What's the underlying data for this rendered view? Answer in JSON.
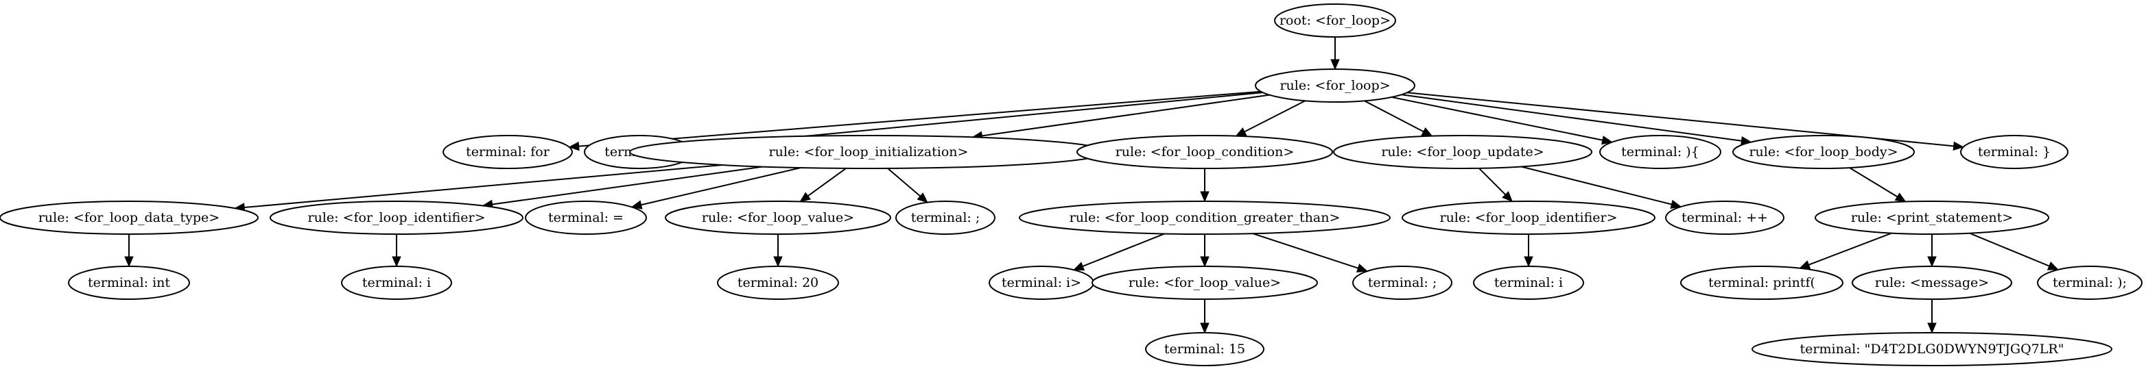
{
  "diagram": {
    "type": "parse-tree",
    "nodes": [
      {
        "id": "n0",
        "label": "root: <for_loop>"
      },
      {
        "id": "n1",
        "label": "rule: <for_loop>"
      },
      {
        "id": "n2",
        "label": "terminal: for"
      },
      {
        "id": "n3",
        "label": "terminal: ("
      },
      {
        "id": "n4",
        "label": "rule: <for_loop_initialization>"
      },
      {
        "id": "n5",
        "label": "rule: <for_loop_condition>"
      },
      {
        "id": "n6",
        "label": "rule: <for_loop_update>"
      },
      {
        "id": "n7",
        "label": "terminal: ){"
      },
      {
        "id": "n8",
        "label": "rule: <for_loop_body>"
      },
      {
        "id": "n9",
        "label": "terminal: }"
      },
      {
        "id": "n10",
        "label": "rule: <for_loop_data_type>"
      },
      {
        "id": "n11",
        "label": "rule: <for_loop_identifier>"
      },
      {
        "id": "n12",
        "label": "terminal: ="
      },
      {
        "id": "n13",
        "label": "rule: <for_loop_value>"
      },
      {
        "id": "n14",
        "label": "terminal: ;"
      },
      {
        "id": "n15",
        "label": "rule: <for_loop_condition_greater_than>"
      },
      {
        "id": "n16",
        "label": "rule: <for_loop_identifier>"
      },
      {
        "id": "n17",
        "label": "terminal: ++"
      },
      {
        "id": "n18",
        "label": "rule: <print_statement>"
      },
      {
        "id": "n19",
        "label": "terminal: int"
      },
      {
        "id": "n20",
        "label": "terminal: i"
      },
      {
        "id": "n21",
        "label": "terminal: 20"
      },
      {
        "id": "n22",
        "label": "terminal: i>"
      },
      {
        "id": "n23",
        "label": "rule: <for_loop_value>"
      },
      {
        "id": "n24",
        "label": "terminal: ;"
      },
      {
        "id": "n25",
        "label": "terminal: i"
      },
      {
        "id": "n26",
        "label": "terminal: printf("
      },
      {
        "id": "n27",
        "label": "rule: <message>"
      },
      {
        "id": "n28",
        "label": "terminal: );"
      },
      {
        "id": "n29",
        "label": "terminal: 15"
      },
      {
        "id": "n30",
        "label": "terminal: \"D4T2DLG0DWYN9TJGQ7LR\""
      }
    ],
    "edges": [
      [
        "n0",
        "n1"
      ],
      [
        "n1",
        "n2"
      ],
      [
        "n1",
        "n3"
      ],
      [
        "n1",
        "n4"
      ],
      [
        "n1",
        "n5"
      ],
      [
        "n1",
        "n6"
      ],
      [
        "n1",
        "n7"
      ],
      [
        "n1",
        "n8"
      ],
      [
        "n1",
        "n9"
      ],
      [
        "n4",
        "n10"
      ],
      [
        "n4",
        "n11"
      ],
      [
        "n4",
        "n12"
      ],
      [
        "n4",
        "n13"
      ],
      [
        "n4",
        "n14"
      ],
      [
        "n5",
        "n15"
      ],
      [
        "n6",
        "n16"
      ],
      [
        "n6",
        "n17"
      ],
      [
        "n8",
        "n18"
      ],
      [
        "n10",
        "n19"
      ],
      [
        "n11",
        "n20"
      ],
      [
        "n13",
        "n21"
      ],
      [
        "n15",
        "n22"
      ],
      [
        "n15",
        "n23"
      ],
      [
        "n15",
        "n24"
      ],
      [
        "n16",
        "n25"
      ],
      [
        "n18",
        "n26"
      ],
      [
        "n18",
        "n27"
      ],
      [
        "n18",
        "n28"
      ],
      [
        "n23",
        "n29"
      ],
      [
        "n27",
        "n30"
      ]
    ]
  }
}
